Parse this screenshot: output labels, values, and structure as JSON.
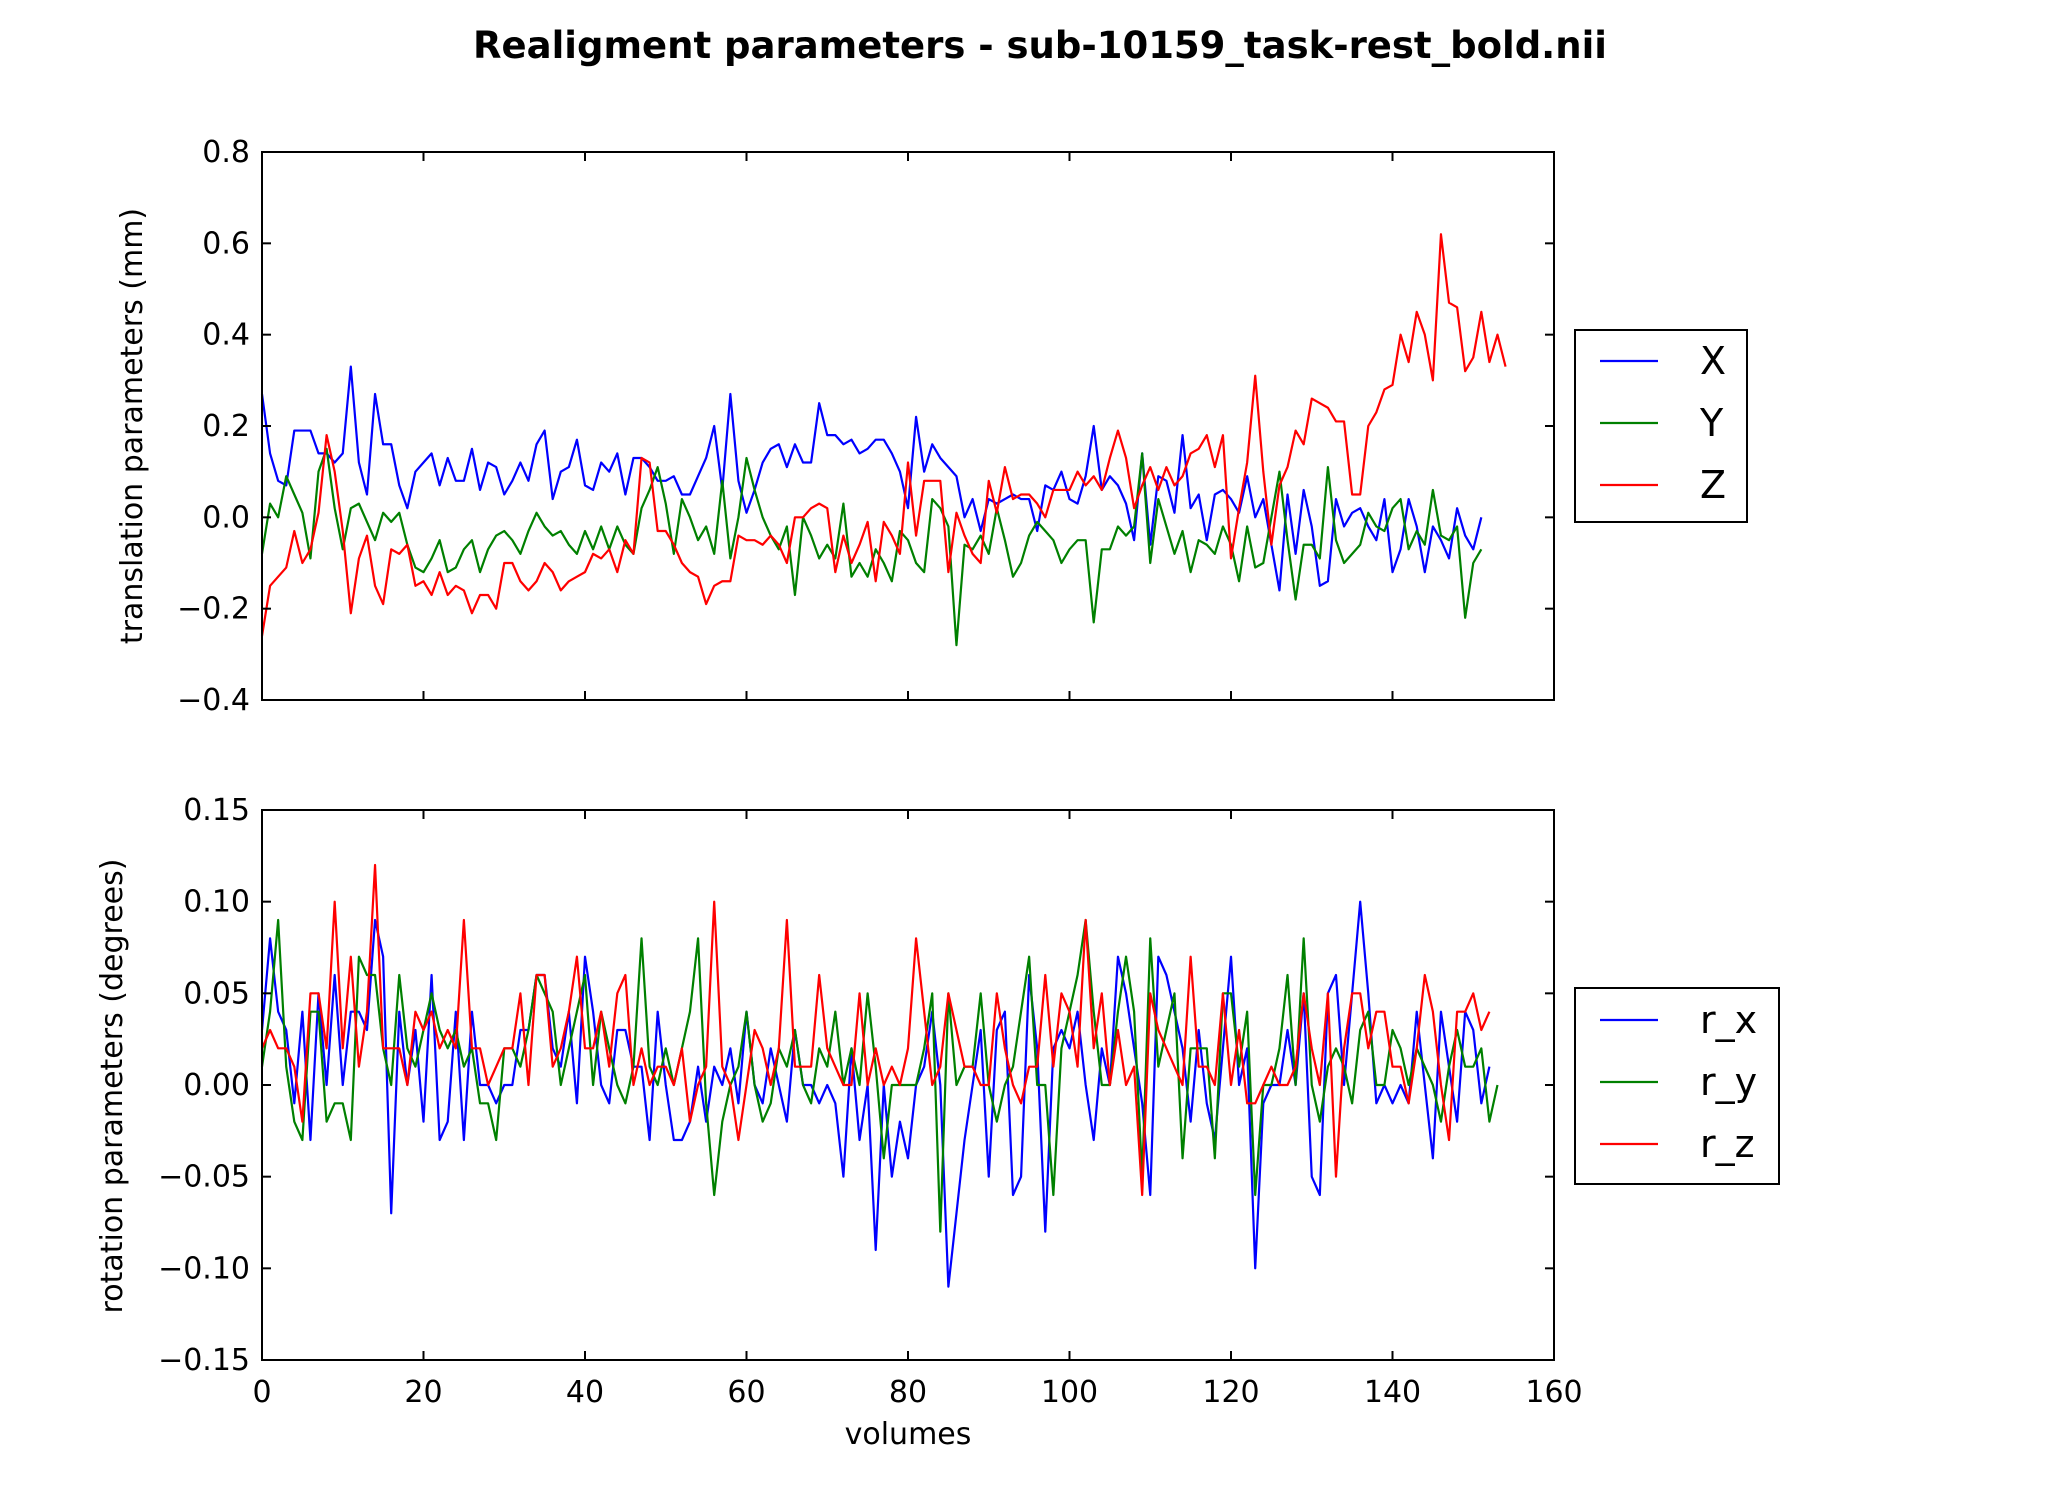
{
  "title": "Realigment parameters - sub-10159_task-rest_bold.nii",
  "chart_data": [
    {
      "type": "line",
      "ylabel": "translation parameters (mm)",
      "xlim": [
        0,
        160
      ],
      "ylim": [
        -0.4,
        0.8
      ],
      "xticks": [
        0,
        20,
        40,
        60,
        80,
        100,
        120,
        140,
        160
      ],
      "yticks": [
        -0.4,
        -0.2,
        0.0,
        0.2,
        0.4,
        0.6,
        0.8
      ],
      "ytick_labels": [
        "−0.4",
        "−0.2",
        "0.0",
        "0.2",
        "0.4",
        "0.6",
        "0.8"
      ],
      "legend_position": "right",
      "grid": false,
      "series": [
        {
          "name": "X",
          "color": "#0000ff",
          "values": [
            0.27,
            0.14,
            0.08,
            0.07,
            0.19,
            0.19,
            0.19,
            0.14,
            0.14,
            0.12,
            0.14,
            0.33,
            0.12,
            0.05,
            0.27,
            0.16,
            0.16,
            0.07,
            0.02,
            0.1,
            0.12,
            0.14,
            0.07,
            0.13,
            0.08,
            0.08,
            0.15,
            0.06,
            0.12,
            0.11,
            0.05,
            0.08,
            0.12,
            0.08,
            0.16,
            0.19,
            0.04,
            0.1,
            0.11,
            0.17,
            0.07,
            0.06,
            0.12,
            0.1,
            0.14,
            0.05,
            0.13,
            0.13,
            0.11,
            0.08,
            0.08,
            0.09,
            0.05,
            0.05,
            0.09,
            0.13,
            0.2,
            0.06,
            0.27,
            0.08,
            0.01,
            0.06,
            0.12,
            0.15,
            0.16,
            0.11,
            0.16,
            0.12,
            0.12,
            0.25,
            0.18,
            0.18,
            0.16,
            0.17,
            0.14,
            0.15,
            0.17,
            0.17,
            0.14,
            0.1,
            0.02,
            0.22,
            0.1,
            0.16,
            0.13,
            0.11,
            0.09,
            0.0,
            0.04,
            -0.03,
            0.04,
            0.03,
            0.04,
            0.05,
            0.04,
            0.04,
            -0.03,
            0.07,
            0.06,
            0.1,
            0.04,
            0.03,
            0.09,
            0.2,
            0.06,
            0.09,
            0.07,
            0.03,
            -0.05,
            0.14,
            -0.06,
            0.09,
            0.08,
            0.01,
            0.18,
            0.02,
            0.05,
            -0.05,
            0.05,
            0.06,
            0.04,
            0.01,
            0.09,
            0.0,
            0.04,
            -0.06,
            -0.16,
            0.05,
            -0.08,
            0.06,
            -0.02,
            -0.15,
            -0.14,
            0.04,
            -0.02,
            0.01,
            0.02,
            -0.02,
            -0.05,
            0.04,
            -0.12,
            -0.07,
            0.04,
            -0.02,
            -0.12,
            -0.02,
            -0.05,
            -0.09,
            0.02,
            -0.04,
            -0.07,
            0.0
          ]
        },
        {
          "name": "Y",
          "color": "#008000",
          "values": [
            -0.08,
            0.03,
            0.0,
            0.09,
            0.05,
            0.01,
            -0.09,
            0.1,
            0.15,
            0.02,
            -0.07,
            0.02,
            0.03,
            -0.01,
            -0.05,
            0.01,
            -0.01,
            0.01,
            -0.06,
            -0.11,
            -0.12,
            -0.09,
            -0.05,
            -0.12,
            -0.11,
            -0.07,
            -0.05,
            -0.12,
            -0.07,
            -0.04,
            -0.03,
            -0.05,
            -0.08,
            -0.03,
            0.01,
            -0.02,
            -0.04,
            -0.03,
            -0.06,
            -0.08,
            -0.03,
            -0.07,
            -0.02,
            -0.07,
            -0.02,
            -0.06,
            -0.08,
            0.02,
            0.06,
            0.11,
            0.03,
            -0.08,
            0.04,
            0.0,
            -0.05,
            -0.02,
            -0.08,
            0.08,
            -0.09,
            0.0,
            0.13,
            0.06,
            0.0,
            -0.04,
            -0.07,
            -0.02,
            -0.17,
            0.0,
            -0.04,
            -0.09,
            -0.06,
            -0.09,
            0.03,
            -0.13,
            -0.1,
            -0.13,
            -0.07,
            -0.1,
            -0.14,
            -0.03,
            -0.05,
            -0.1,
            -0.12,
            0.04,
            0.02,
            -0.02,
            -0.28,
            -0.06,
            -0.07,
            -0.04,
            -0.08,
            0.02,
            -0.05,
            -0.13,
            -0.1,
            -0.04,
            -0.01,
            -0.03,
            -0.05,
            -0.1,
            -0.07,
            -0.05,
            -0.05,
            -0.23,
            -0.07,
            -0.07,
            -0.02,
            -0.04,
            -0.02,
            0.14,
            -0.1,
            0.04,
            -0.02,
            -0.08,
            -0.03,
            -0.12,
            -0.05,
            -0.06,
            -0.08,
            -0.02,
            -0.06,
            -0.14,
            -0.02,
            -0.11,
            -0.1,
            0.0,
            0.1,
            -0.05,
            -0.18,
            -0.06,
            -0.06,
            -0.09,
            0.11,
            -0.05,
            -0.1,
            -0.08,
            -0.06,
            0.01,
            -0.02,
            -0.03,
            0.02,
            0.04,
            -0.07,
            -0.03,
            -0.06,
            0.06,
            -0.04,
            -0.05,
            -0.02,
            -0.22,
            -0.1,
            -0.07
          ]
        },
        {
          "name": "Z",
          "color": "#ff0000",
          "values": [
            -0.26,
            -0.15,
            -0.13,
            -0.11,
            -0.03,
            -0.1,
            -0.07,
            0.01,
            0.18,
            0.1,
            -0.03,
            -0.21,
            -0.09,
            -0.04,
            -0.15,
            -0.19,
            -0.07,
            -0.08,
            -0.06,
            -0.15,
            -0.14,
            -0.17,
            -0.12,
            -0.17,
            -0.15,
            -0.16,
            -0.21,
            -0.17,
            -0.17,
            -0.2,
            -0.1,
            -0.1,
            -0.14,
            -0.16,
            -0.14,
            -0.1,
            -0.12,
            -0.16,
            -0.14,
            -0.13,
            -0.12,
            -0.08,
            -0.09,
            -0.07,
            -0.12,
            -0.05,
            -0.08,
            0.13,
            0.12,
            -0.03,
            -0.03,
            -0.06,
            -0.1,
            -0.12,
            -0.13,
            -0.19,
            -0.15,
            -0.14,
            -0.14,
            -0.04,
            -0.05,
            -0.05,
            -0.06,
            -0.04,
            -0.06,
            -0.1,
            0.0,
            0.0,
            0.02,
            0.03,
            0.02,
            -0.12,
            -0.04,
            -0.1,
            -0.06,
            -0.01,
            -0.14,
            -0.01,
            -0.04,
            -0.08,
            0.12,
            -0.04,
            0.08,
            0.08,
            0.08,
            -0.12,
            0.01,
            -0.04,
            -0.08,
            -0.1,
            0.08,
            0.01,
            0.11,
            0.04,
            0.05,
            0.05,
            0.03,
            0.0,
            0.06,
            0.06,
            0.06,
            0.1,
            0.07,
            0.09,
            0.06,
            0.13,
            0.19,
            0.13,
            0.02,
            0.07,
            0.11,
            0.06,
            0.11,
            0.07,
            0.09,
            0.14,
            0.15,
            0.18,
            0.11,
            0.18,
            -0.09,
            0.02,
            0.12,
            0.31,
            0.1,
            -0.06,
            0.07,
            0.11,
            0.19,
            0.16,
            0.26,
            0.25,
            0.24,
            0.21,
            0.21,
            0.05,
            0.05,
            0.2,
            0.23,
            0.28,
            0.29,
            0.4,
            0.34,
            0.45,
            0.4,
            0.3,
            0.62,
            0.47,
            0.46,
            0.32,
            0.35,
            0.45,
            0.34,
            0.4,
            0.33
          ]
        }
      ]
    },
    {
      "type": "line",
      "xlabel": "volumes",
      "ylabel": "rotation parameters (degrees)",
      "xlim": [
        0,
        160
      ],
      "ylim": [
        -0.15,
        0.15
      ],
      "xticks": [
        0,
        20,
        40,
        60,
        80,
        100,
        120,
        140,
        160
      ],
      "yticks": [
        -0.15,
        -0.1,
        -0.05,
        0.0,
        0.05,
        0.1,
        0.15
      ],
      "ytick_labels": [
        "−0.15",
        "−0.10",
        "−0.05",
        "0.00",
        "0.05",
        "0.10",
        "0.15"
      ],
      "legend_position": "right",
      "grid": false,
      "series": [
        {
          "name": "r_x",
          "color": "#0000ff",
          "values": [
            0.03,
            0.08,
            0.04,
            0.03,
            -0.01,
            0.04,
            -0.03,
            0.05,
            0.0,
            0.06,
            0.0,
            0.04,
            0.04,
            0.03,
            0.09,
            0.07,
            -0.07,
            0.04,
            0.0,
            0.03,
            -0.02,
            0.06,
            -0.03,
            -0.02,
            0.04,
            -0.03,
            0.04,
            0.0,
            0.0,
            -0.01,
            0.0,
            0.0,
            0.03,
            0.03,
            0.06,
            0.06,
            0.02,
            0.01,
            0.04,
            -0.01,
            0.07,
            0.04,
            0.0,
            -0.01,
            0.03,
            0.03,
            0.01,
            0.01,
            -0.03,
            0.04,
            0.0,
            -0.03,
            -0.03,
            -0.02,
            0.01,
            -0.02,
            0.01,
            0.0,
            0.02,
            -0.01,
            0.04,
            0.0,
            -0.01,
            0.02,
            0.0,
            -0.02,
            0.03,
            0.0,
            0.0,
            -0.01,
            0.0,
            -0.01,
            -0.05,
            0.02,
            -0.03,
            0.0,
            -0.09,
            0.0,
            -0.05,
            -0.02,
            -0.04,
            0.0,
            0.01,
            0.04,
            0.0,
            -0.11,
            -0.07,
            -0.03,
            0.0,
            0.03,
            -0.05,
            0.03,
            0.04,
            -0.06,
            -0.05,
            0.06,
            0.02,
            -0.08,
            0.02,
            0.03,
            0.02,
            0.04,
            0.0,
            -0.03,
            0.02,
            0.0,
            0.07,
            0.05,
            0.02,
            -0.01,
            -0.06,
            0.07,
            0.06,
            0.04,
            0.02,
            -0.02,
            0.03,
            -0.01,
            -0.03,
            0.02,
            0.07,
            0.0,
            0.02,
            -0.1,
            -0.01,
            0.0,
            0.0,
            0.03,
            0.0,
            0.05,
            -0.05,
            -0.06,
            0.05,
            0.06,
            0.0,
            0.05,
            0.1,
            0.05,
            -0.01,
            0.0,
            -0.01,
            0.0,
            -0.01,
            0.04,
            0.0,
            -0.04,
            0.04,
            0.01,
            -0.02,
            0.04,
            0.03,
            -0.01,
            0.01
          ]
        },
        {
          "name": "r_y",
          "color": "#008000",
          "values": [
            0.01,
            0.04,
            0.09,
            0.01,
            -0.02,
            -0.03,
            0.04,
            0.04,
            -0.02,
            -0.01,
            -0.01,
            -0.03,
            0.07,
            0.06,
            0.06,
            0.02,
            0.0,
            0.06,
            0.02,
            0.01,
            0.03,
            0.05,
            0.03,
            0.02,
            0.03,
            0.01,
            0.02,
            -0.01,
            -0.01,
            -0.03,
            0.02,
            0.02,
            0.01,
            0.03,
            0.06,
            0.05,
            0.04,
            0.0,
            0.02,
            0.04,
            0.06,
            0.0,
            0.04,
            0.02,
            0.0,
            -0.01,
            0.01,
            0.08,
            0.01,
            0.0,
            0.02,
            0.0,
            0.02,
            0.04,
            0.08,
            -0.01,
            -0.06,
            -0.02,
            0.0,
            0.01,
            0.04,
            0.0,
            -0.02,
            -0.01,
            0.02,
            0.01,
            0.03,
            0.0,
            -0.01,
            0.02,
            0.01,
            0.04,
            0.0,
            0.02,
            0.0,
            0.05,
            0.01,
            -0.04,
            0.0,
            0.0,
            0.0,
            0.0,
            0.02,
            0.05,
            -0.08,
            0.05,
            0.0,
            0.01,
            0.01,
            0.05,
            0.0,
            -0.02,
            0.0,
            0.01,
            0.04,
            0.07,
            0.0,
            0.0,
            -0.06,
            0.02,
            0.04,
            0.06,
            0.09,
            0.04,
            0.0,
            0.0,
            0.04,
            0.07,
            0.04,
            -0.05,
            0.08,
            0.01,
            0.03,
            0.05,
            -0.04,
            0.02,
            0.02,
            0.02,
            -0.04,
            0.05,
            0.05,
            0.01,
            0.04,
            -0.06,
            0.0,
            0.0,
            0.02,
            0.06,
            0.0,
            0.08,
            0.0,
            -0.02,
            0.01,
            0.02,
            0.01,
            -0.01,
            0.03,
            0.04,
            0.0,
            0.0,
            0.03,
            0.02,
            0.0,
            0.02,
            0.01,
            0.0,
            -0.02,
            0.01,
            0.03,
            0.01,
            0.01,
            0.02,
            -0.02,
            0.0
          ]
        },
        {
          "name": "r_z",
          "color": "#ff0000",
          "values": [
            0.02,
            0.03,
            0.02,
            0.02,
            0.01,
            -0.02,
            0.05,
            0.05,
            0.02,
            0.1,
            0.02,
            0.07,
            0.01,
            0.04,
            0.12,
            0.02,
            0.02,
            0.02,
            0.0,
            0.04,
            0.03,
            0.04,
            0.02,
            0.03,
            0.02,
            0.09,
            0.02,
            0.02,
            0.0,
            0.01,
            0.02,
            0.02,
            0.05,
            0.0,
            0.06,
            0.06,
            0.01,
            0.02,
            0.04,
            0.07,
            0.02,
            0.02,
            0.04,
            0.01,
            0.05,
            0.06,
            0.0,
            0.02,
            0.0,
            0.01,
            0.01,
            0.0,
            0.02,
            -0.02,
            0.0,
            0.01,
            0.1,
            0.01,
            0.0,
            -0.03,
            0.0,
            0.03,
            0.02,
            0.0,
            0.02,
            0.09,
            0.01,
            0.01,
            0.01,
            0.06,
            0.02,
            0.01,
            0.0,
            0.0,
            0.05,
            0.0,
            0.02,
            0.0,
            0.01,
            0.0,
            0.02,
            0.08,
            0.04,
            0.0,
            0.01,
            0.05,
            0.03,
            0.01,
            0.01,
            0.0,
            0.0,
            0.05,
            0.02,
            0.0,
            -0.01,
            0.01,
            0.01,
            0.06,
            0.01,
            0.05,
            0.04,
            0.01,
            0.09,
            0.02,
            0.05,
            0.0,
            0.03,
            0.0,
            0.01,
            -0.06,
            0.05,
            0.03,
            0.02,
            0.01,
            0.0,
            0.07,
            0.01,
            0.01,
            0.0,
            0.05,
            0.0,
            0.03,
            -0.01,
            -0.01,
            0.0,
            0.01,
            0.0,
            0.0,
            0.01,
            0.05,
            0.02,
            0.0,
            0.05,
            -0.05,
            0.02,
            0.05,
            0.05,
            0.02,
            0.04,
            0.04,
            0.01,
            0.01,
            -0.01,
            0.02,
            0.06,
            0.04,
            0.0,
            -0.03,
            0.04,
            0.04,
            0.05,
            0.03,
            0.04
          ]
        }
      ]
    }
  ]
}
